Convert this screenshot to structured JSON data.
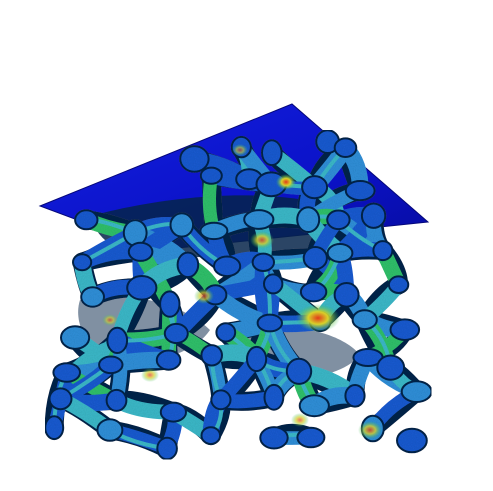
{
  "scene": {
    "subject": "",
    "colors": {
      "background": "#ffffff",
      "plate": "#0b12c8",
      "plate_edge": "#05087a",
      "strut_base": "#1a5ad0",
      "strut_mid": "#2f8fd8",
      "strut_light": "#3bb8c8",
      "stress_green": "#2fc06a",
      "stress_yellow": "#d8d22a",
      "stress_red": "#e23a1a",
      "shadow": "#06244a"
    }
  }
}
